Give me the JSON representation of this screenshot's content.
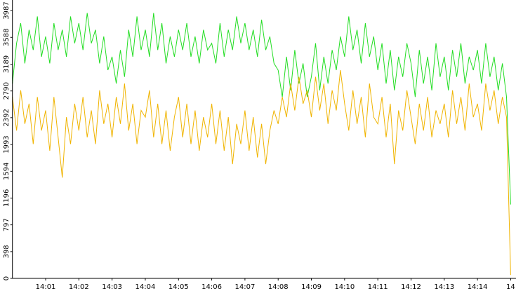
{
  "chart_data": {
    "type": "line",
    "x": [
      0,
      0.125,
      0.25,
      0.375,
      0.5,
      0.625,
      0.75,
      0.875,
      1,
      1.125,
      1.25,
      1.375,
      1.5,
      1.625,
      1.75,
      1.875,
      2,
      2.125,
      2.25,
      2.375,
      2.5,
      2.625,
      2.75,
      2.875,
      3,
      3.125,
      3.25,
      3.375,
      3.5,
      3.625,
      3.75,
      3.875,
      4,
      4.125,
      4.25,
      4.375,
      4.5,
      4.625,
      4.75,
      4.875,
      5,
      5.125,
      5.25,
      5.375,
      5.5,
      5.625,
      5.75,
      5.875,
      6,
      6.125,
      6.25,
      6.375,
      6.5,
      6.625,
      6.75,
      6.875,
      7,
      7.125,
      7.25,
      7.375,
      7.5,
      7.625,
      7.75,
      7.875,
      8,
      8.125,
      8.25,
      8.375,
      8.5,
      8.625,
      8.75,
      8.875,
      9,
      9.125,
      9.25,
      9.375,
      9.5,
      9.625,
      9.75,
      9.875,
      10,
      10.125,
      10.25,
      10.375,
      10.5,
      10.625,
      10.75,
      10.875,
      11,
      11.125,
      11.25,
      11.375,
      11.5,
      11.625,
      11.75,
      11.875,
      12,
      12.125,
      12.25,
      12.375,
      12.5,
      12.625,
      12.75,
      12.875,
      13,
      13.125,
      13.25,
      13.375,
      13.5,
      13.625,
      13.75,
      13.875,
      14,
      14.125,
      14.25,
      14.375,
      14.5,
      14.625,
      14.75,
      14.875,
      15
    ],
    "series": [
      {
        "color": "#22dd22",
        "values": [
          2900,
          3500,
          3800,
          3200,
          3700,
          3400,
          3900,
          3300,
          3600,
          3200,
          3800,
          3400,
          3700,
          3300,
          3900,
          3500,
          3800,
          3400,
          3950,
          3500,
          3700,
          3200,
          3600,
          3100,
          3300,
          2900,
          3400,
          3000,
          3700,
          3300,
          3900,
          3400,
          3700,
          3300,
          3950,
          3400,
          3800,
          3200,
          3600,
          3300,
          3700,
          3400,
          3800,
          3300,
          3600,
          3200,
          3700,
          3400,
          3500,
          3200,
          3800,
          3300,
          3700,
          3400,
          3900,
          3500,
          3800,
          3400,
          3700,
          3300,
          3850,
          3400,
          3600,
          3200,
          3100,
          2700,
          3300,
          2800,
          3400,
          2900,
          3200,
          2700,
          3000,
          3500,
          2800,
          3300,
          2900,
          3400,
          3100,
          3600,
          3300,
          3900,
          3400,
          3700,
          3200,
          3800,
          3300,
          3600,
          3100,
          3500,
          2900,
          3400,
          2800,
          3300,
          3000,
          3500,
          3200,
          2700,
          3400,
          2900,
          3300,
          2800,
          3500,
          3000,
          3300,
          2800,
          3400,
          3000,
          3500,
          2900,
          3300,
          3100,
          3400,
          2900,
          3500,
          3000,
          3300,
          2800,
          3200,
          2700,
          1100
        ]
      },
      {
        "color": "#f0b400",
        "values": [
          2700,
          2200,
          2800,
          2300,
          2600,
          2000,
          2700,
          2200,
          2500,
          1900,
          2700,
          2100,
          1500,
          2400,
          2000,
          2600,
          2200,
          2700,
          2100,
          2500,
          2000,
          2800,
          2300,
          2600,
          2100,
          2700,
          2300,
          2900,
          2200,
          2600,
          2000,
          2500,
          2400,
          2800,
          2100,
          2600,
          2000,
          2500,
          1900,
          2400,
          2700,
          2100,
          2600,
          2000,
          2500,
          1900,
          2400,
          2100,
          2600,
          2000,
          2500,
          1900,
          2400,
          1700,
          2300,
          2000,
          2500,
          1900,
          2400,
          1800,
          2300,
          1700,
          2200,
          2500,
          2300,
          2700,
          2400,
          2900,
          2500,
          3000,
          2600,
          2800,
          2400,
          3000,
          2500,
          2900,
          2300,
          2800,
          2500,
          3100,
          2600,
          2200,
          2800,
          2300,
          2700,
          2100,
          2900,
          2400,
          2300,
          2700,
          2100,
          2600,
          1700,
          2500,
          2200,
          2800,
          2400,
          2000,
          2600,
          2200,
          2700,
          2100,
          2500,
          2300,
          2600,
          2100,
          2800,
          2300,
          2700,
          2200,
          2900,
          2400,
          2600,
          2200,
          2900,
          2500,
          2800,
          2300,
          2700,
          2400,
          50
        ]
      }
    ],
    "xlim": [
      0,
      15.16
    ],
    "xticks": [
      {
        "value": 1,
        "label": "14:01"
      },
      {
        "value": 2,
        "label": "14:02"
      },
      {
        "value": 3,
        "label": "14:03"
      },
      {
        "value": 4,
        "label": "14:04"
      },
      {
        "value": 5,
        "label": "14:05"
      },
      {
        "value": 6,
        "label": "14:06"
      },
      {
        "value": 7,
        "label": "14:07"
      },
      {
        "value": 8,
        "label": "14:08"
      },
      {
        "value": 9,
        "label": "14:09"
      },
      {
        "value": 10,
        "label": "14:10"
      },
      {
        "value": 11,
        "label": "14:11"
      },
      {
        "value": 12,
        "label": "14:12"
      },
      {
        "value": 13,
        "label": "14:13"
      },
      {
        "value": 14,
        "label": "14:14"
      },
      {
        "value": 15,
        "label": "14"
      }
    ],
    "ylim": [
      0,
      4144
    ],
    "yticks": [
      0,
      398,
      797,
      1196,
      1594,
      1993,
      2392,
      2790,
      3189,
      3588,
      3987
    ]
  }
}
